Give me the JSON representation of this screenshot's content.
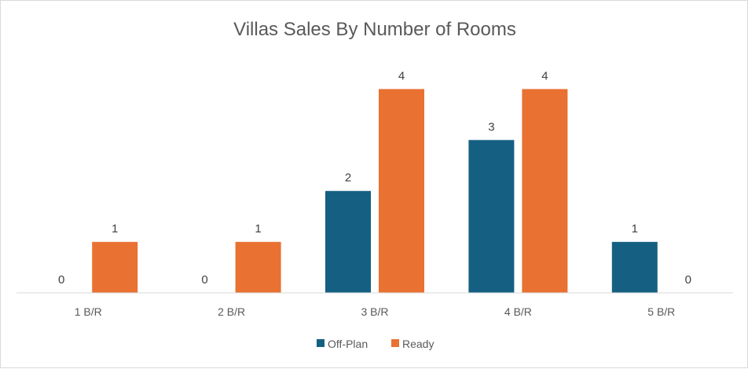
{
  "chart_data": {
    "type": "bar",
    "title": "Villas Sales By Number of Rooms",
    "categories": [
      "1 B/R",
      "2 B/R",
      "3 B/R",
      "4 B/R",
      "5 B/R"
    ],
    "series": [
      {
        "name": "Off-Plan",
        "values": [
          0,
          0,
          2,
          3,
          1
        ],
        "color": "#156082"
      },
      {
        "name": "Ready",
        "values": [
          1,
          1,
          4,
          4,
          0
        ],
        "color": "#E97132"
      }
    ],
    "ylim": [
      0,
      4.5
    ],
    "grid": false,
    "data_labels": true,
    "legend_position": "bottom"
  }
}
